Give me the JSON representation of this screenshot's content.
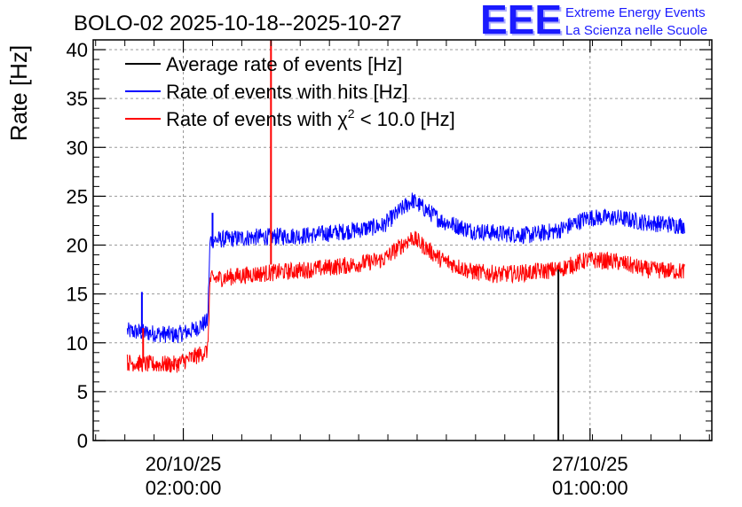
{
  "header": {
    "title": "BOLO-02 2025-10-18--2025-10-27",
    "logo_text": "EEE",
    "logo_line1": "Extreme Energy Events",
    "logo_line2": "La Scienza nelle Scuole",
    "logo_color": "#1a1aff"
  },
  "chart_data": {
    "type": "line",
    "ylabel": "Rate [Hz]",
    "xlabel": "",
    "ylim": [
      0,
      41
    ],
    "yticks": [
      0,
      5,
      10,
      15,
      20,
      25,
      30,
      35,
      40
    ],
    "xlim": [
      "2025-10-18T13:00",
      "2025-10-29T03:00"
    ],
    "xticks": [
      {
        "date": "2025-10-20T02:00",
        "label1": "20/10/25",
        "label2": "02:00:00"
      },
      {
        "date": "2025-10-27T01:00",
        "label1": "27/10/25",
        "label2": "01:00:00"
      }
    ],
    "grid": true,
    "legend_position": "top-left",
    "legend": [
      {
        "text": "Average rate of events [Hz]",
        "color": "#000000"
      },
      {
        "text": "Rate of events with hits [Hz]",
        "color": "#0000ff"
      },
      {
        "text_pre": "Rate of events with ",
        "text_chi": "χ",
        "text_sup": "2",
        "text_post": " < 10.0 [Hz]",
        "color": "#ff0000"
      }
    ],
    "series": [
      {
        "name": "Rate of events with hits [Hz]",
        "color": "#0000ff",
        "noise": 0.9,
        "x": [
          "2025-10-19T03:00",
          "2025-10-19T12:00",
          "2025-10-19T23:00",
          "2025-10-20T06:00",
          "2025-10-20T12:00",
          "2025-10-20T13:00",
          "2025-10-21T06:00",
          "2025-10-22T06:00",
          "2025-10-23T00:00",
          "2025-10-23T12:00",
          "2025-10-24T00:00",
          "2025-10-24T12:00",
          "2025-10-25T00:00",
          "2025-10-25T12:00",
          "2025-10-26T00:00",
          "2025-10-26T12:00",
          "2025-10-27T00:00",
          "2025-10-27T12:00",
          "2025-10-28T00:00",
          "2025-10-28T16:00"
        ],
        "y": [
          11.2,
          11.0,
          10.8,
          11.3,
          12.2,
          20.5,
          20.8,
          21.0,
          21.5,
          22.0,
          24.6,
          22.5,
          21.5,
          21.2,
          21.0,
          21.5,
          22.8,
          22.8,
          22.3,
          22.0
        ]
      },
      {
        "name": "Rate of events with χ2 < 10.0 [Hz]",
        "color": "#ff0000",
        "noise": 0.9,
        "x": [
          "2025-10-19T03:00",
          "2025-10-19T12:00",
          "2025-10-19T23:00",
          "2025-10-20T06:00",
          "2025-10-20T12:00",
          "2025-10-20T13:00",
          "2025-10-21T06:00",
          "2025-10-22T06:00",
          "2025-10-23T00:00",
          "2025-10-23T12:00",
          "2025-10-24T00:00",
          "2025-10-24T12:00",
          "2025-10-25T00:00",
          "2025-10-25T12:00",
          "2025-10-26T00:00",
          "2025-10-26T12:00",
          "2025-10-27T00:00",
          "2025-10-27T12:00",
          "2025-10-28T00:00",
          "2025-10-28T16:00"
        ],
        "y": [
          8.0,
          7.8,
          7.8,
          8.5,
          9.2,
          16.5,
          17.0,
          17.5,
          18.0,
          18.5,
          20.8,
          18.5,
          17.3,
          17.0,
          17.2,
          17.5,
          18.5,
          18.3,
          17.5,
          17.3
        ]
      },
      {
        "name": "Average rate of events [Hz]",
        "color": "#000000",
        "noise": 0,
        "x": [
          "2025-10-26T12:00",
          "2025-10-26T12:00"
        ],
        "y": [
          0,
          17.5
        ]
      }
    ],
    "spikes": [
      {
        "series": "Rate of events with χ2 < 10.0 [Hz]",
        "color": "#ff0000",
        "date": "2025-10-21T14:00",
        "from": 18,
        "to": 41
      },
      {
        "series": "Rate of events with hits [Hz]",
        "color": "#0000ff",
        "date": "2025-10-19T09:00",
        "from": 11,
        "to": 15.2
      },
      {
        "series": "Rate of events with hits [Hz]",
        "color": "#0000ff",
        "date": "2025-10-20T14:00",
        "from": 20.5,
        "to": 23.3
      },
      {
        "series": "Rate of events with χ2 < 10.0 [Hz]",
        "color": "#ff0000",
        "date": "2025-10-19T09:30",
        "from": 8,
        "to": 11.5
      }
    ]
  }
}
